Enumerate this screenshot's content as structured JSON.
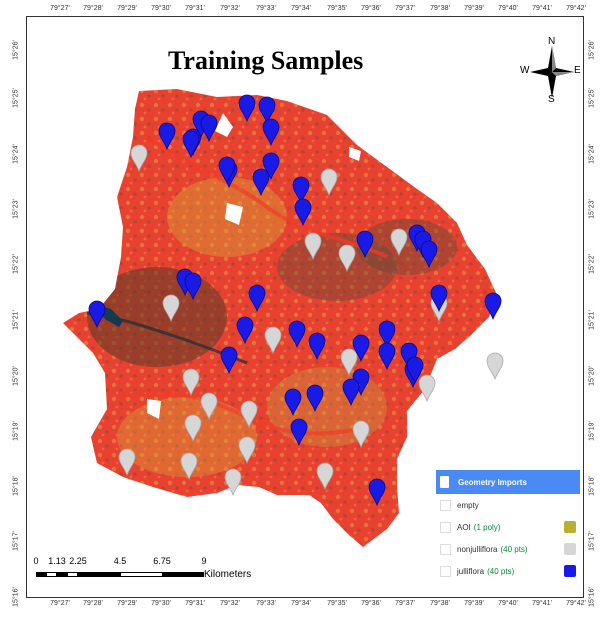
{
  "map": {
    "title": "Training Samples",
    "colors": {
      "background_red": "#ea3c2f",
      "yellow_patch": "#d6a23a",
      "dark_patch": "#5a3a28",
      "water": "#123a50",
      "julliflora_marker": "#1a1ae6",
      "nonjulliflora_marker": "#d6d6d6",
      "aoi_swatch": "#b8b130"
    },
    "ticks_x_top": [
      "79°27'",
      "79°28'",
      "79°29'",
      "79°30'",
      "79°31'",
      "79°32'",
      "79°33'",
      "79°34'",
      "79°35'",
      "79°36'",
      "79°37'",
      "79°38'",
      "79°39'",
      "79°40'",
      "79°41'",
      "79°42'"
    ],
    "ticks_x_bottom": [
      "79°27'",
      "79°28'",
      "79°29'",
      "79°30'",
      "79°31'",
      "79°32'",
      "79°33'",
      "79°34'",
      "79°35'",
      "79°36'",
      "79°37'",
      "79°38'",
      "79°39'",
      "79°40'",
      "79°41'",
      "79°42'"
    ],
    "ticks_y_left": [
      "15°26'",
      "15°25'",
      "15°24'",
      "15°23'",
      "15°22'",
      "15°21'",
      "15°20'",
      "15°19'",
      "15°18'",
      "15°17'",
      "15°16'"
    ],
    "ticks_y_right": [
      "15°26'",
      "15°25'",
      "15°24'",
      "15°23'",
      "15°22'",
      "15°21'",
      "15°20'",
      "15°19'",
      "15°18'",
      "15°17'",
      "15°16'"
    ]
  },
  "north_arrow": {
    "n": "N",
    "s": "S",
    "e": "E",
    "w": "W"
  },
  "scale_bar": {
    "labels": [
      "0",
      "1.13",
      "2.25",
      "4.5",
      "6.75",
      "9"
    ],
    "unit": "Kilometers"
  },
  "legend": {
    "header": "Geometry Imports",
    "items": [
      {
        "name": "empty",
        "count": "",
        "color": ""
      },
      {
        "name": "AOI",
        "count": "(1 poly)",
        "color": "#b8b130"
      },
      {
        "name": "nonjulliflora",
        "count": "(40 pts)",
        "color": "#d6d6d6"
      },
      {
        "name": "julliflora",
        "count": "(40 pts)",
        "color": "#1a1ae6"
      }
    ]
  },
  "samples": {
    "julliflora": 40,
    "nonjulliflora": 40
  }
}
